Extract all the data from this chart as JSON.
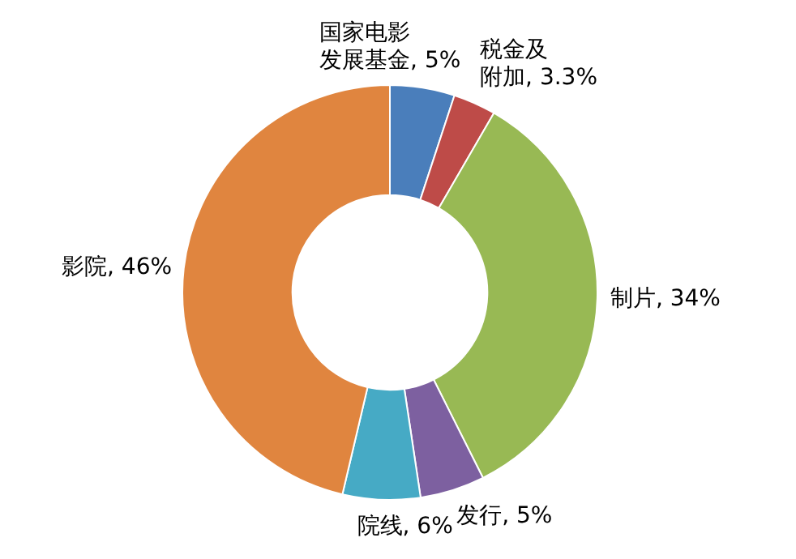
{
  "chart_data": {
    "type": "donut",
    "categories": [
      "国家电影发展基金",
      "税金及附加",
      "制片",
      "发行",
      "院线",
      "影院"
    ],
    "values": [
      5,
      3.3,
      34,
      5,
      6,
      46
    ],
    "colors": [
      "#4a7ebb",
      "#be4b48",
      "#98b954",
      "#7d60a0",
      "#46aac5",
      "#e0853f"
    ],
    "value_labels": [
      ", 5%",
      ", 3.3%",
      ", 34%",
      ", 5%",
      ", 6%",
      ", 46%"
    ],
    "legend": false
  }
}
